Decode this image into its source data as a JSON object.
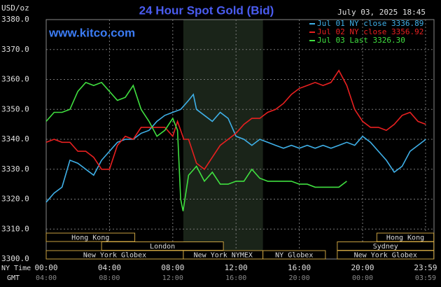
{
  "chart_data": {
    "type": "line",
    "title": "24 Hour Spot Gold (Bid)",
    "y_unit": "USD/oz",
    "watermark": "www.kitco.com",
    "timestamp": "July 03, 2025 18:45",
    "x_row_labels": [
      "NY Time",
      "GMT"
    ],
    "xlim": [
      0,
      24.5
    ],
    "ylim": [
      3300,
      3380
    ],
    "xticks": [
      {
        "value": 0,
        "label": "00:00"
      },
      {
        "value": 4,
        "label": "04:00"
      },
      {
        "value": 8,
        "label": "08:00"
      },
      {
        "value": 12,
        "label": "12:00"
      },
      {
        "value": 16,
        "label": "16:00"
      },
      {
        "value": 20,
        "label": "20:00"
      },
      {
        "value": 23.98,
        "label": "23:59"
      }
    ],
    "gmt_labels": [
      "04:00",
      "08:00",
      "12:00",
      "16:00",
      "20:00",
      "00:00",
      "03:59"
    ],
    "yticks": [
      {
        "value": 3300,
        "label": "3300.0"
      },
      {
        "value": 3310,
        "label": "3310.0"
      },
      {
        "value": 3320,
        "label": "3320.0"
      },
      {
        "value": 3330,
        "label": "3330.0"
      },
      {
        "value": 3340,
        "label": "3340.0"
      },
      {
        "value": 3350,
        "label": "3350.0"
      },
      {
        "value": 3360,
        "label": "3360.0"
      },
      {
        "value": 3370,
        "label": "3370.0"
      },
      {
        "value": 3380,
        "label": "3380.0"
      }
    ],
    "grid": true,
    "legend": "top-right",
    "highlight_band": [
      8.67,
      13.7
    ],
    "session_rows": [
      [
        {
          "label": "Hong Kong",
          "start": 0,
          "end": 5.6
        },
        {
          "label": "Hong Kong",
          "start": 20.9,
          "end": 24.5
        }
      ],
      [
        {
          "label": "London",
          "start": 3.5,
          "end": 11.2
        },
        {
          "label": "Sydney",
          "start": 18.4,
          "end": 24.5
        }
      ],
      [
        {
          "label": "New York Globex",
          "start": 0,
          "end": 8.67
        },
        {
          "label": "New York NYMEX",
          "start": 8.67,
          "end": 13.7
        },
        {
          "label": "NY Globex",
          "start": 13.7,
          "end": 17.65
        },
        {
          "label": "New York Globex",
          "start": 18.4,
          "end": 24.5
        }
      ]
    ],
    "series": [
      {
        "name": "Jul 01 NY close 3336.89",
        "color": "#3fb0e8",
        "x": [
          0,
          0.5,
          1,
          1.5,
          2,
          2.5,
          3,
          3.5,
          4,
          4.5,
          5,
          5.5,
          6,
          6.5,
          7,
          7.5,
          8,
          8.5,
          9,
          9.3,
          9.5,
          10,
          10.5,
          11,
          11.5,
          12,
          12.5,
          13,
          13.5,
          14,
          14.5,
          15,
          15.5,
          16,
          16.5,
          17,
          17.5,
          18,
          18.5,
          19,
          19.5,
          20,
          20.5,
          21,
          21.5,
          22,
          22.5,
          23,
          23.5,
          24
        ],
        "values": [
          3319,
          3322,
          3324,
          3333,
          3332,
          3330,
          3328,
          3333,
          3336,
          3339,
          3340,
          3340,
          3342,
          3343,
          3346,
          3348,
          3349,
          3350,
          3353,
          3355,
          3350,
          3348,
          3346,
          3349,
          3347,
          3341,
          3340,
          3338,
          3340,
          3339,
          3338,
          3337,
          3338,
          3337,
          3338,
          3337,
          3338,
          3337,
          3338,
          3339,
          3338,
          3341,
          3339,
          3336,
          3333,
          3329,
          3331,
          3336,
          3338,
          3340
        ]
      },
      {
        "name": "Jul 02 NY close 3356.92",
        "color": "#e82020",
        "x": [
          0,
          0.5,
          1,
          1.5,
          2,
          2.5,
          3,
          3.5,
          4,
          4.5,
          5,
          5.5,
          6,
          6.5,
          7,
          7.5,
          8,
          8.3,
          8.7,
          9,
          9.5,
          10,
          10.5,
          11,
          11.5,
          12,
          12.5,
          13,
          13.5,
          14,
          14.5,
          15,
          15.5,
          16,
          16.5,
          17,
          17.5,
          18,
          18.5,
          19,
          19.5,
          20,
          20.5,
          21,
          21.5,
          22,
          22.5,
          23,
          23.5,
          24
        ],
        "values": [
          3339,
          3340,
          3339,
          3339,
          3336,
          3336,
          3334,
          3330,
          3330,
          3338,
          3341,
          3340,
          3344,
          3344,
          3344,
          3344,
          3341,
          3346,
          3340,
          3340,
          3332,
          3330,
          3334,
          3338,
          3340,
          3342,
          3345,
          3347,
          3347,
          3349,
          3350,
          3352,
          3355,
          3357,
          3358,
          3359,
          3358,
          3359,
          3363,
          3358,
          3350,
          3346,
          3344,
          3344,
          3343,
          3345,
          3348,
          3349,
          3346,
          3345
        ]
      },
      {
        "name": "Jul 03 Last 3326.30",
        "color": "#40e040",
        "x": [
          0,
          0.5,
          1,
          1.5,
          2,
          2.5,
          3,
          3.5,
          4,
          4.5,
          5,
          5.5,
          6,
          6.5,
          7,
          7.5,
          8,
          8.3,
          8.5,
          8.65,
          9,
          9.5,
          10,
          10.5,
          11,
          11.5,
          12,
          12.5,
          13,
          13.5,
          14,
          14.5,
          15,
          15.5,
          16,
          16.5,
          17,
          17.5,
          18,
          18.5,
          19
        ],
        "values": [
          3346,
          3349,
          3349,
          3350,
          3356,
          3359,
          3358,
          3359,
          3356,
          3353,
          3354,
          3358,
          3350,
          3346,
          3341,
          3343,
          3347,
          3343,
          3320,
          3316,
          3328,
          3331,
          3326,
          3329,
          3325,
          3325,
          3326,
          3326,
          3330,
          3327,
          3326,
          3326,
          3326,
          3326,
          3325,
          3325,
          3324,
          3324,
          3324,
          3324,
          3326
        ]
      }
    ]
  }
}
